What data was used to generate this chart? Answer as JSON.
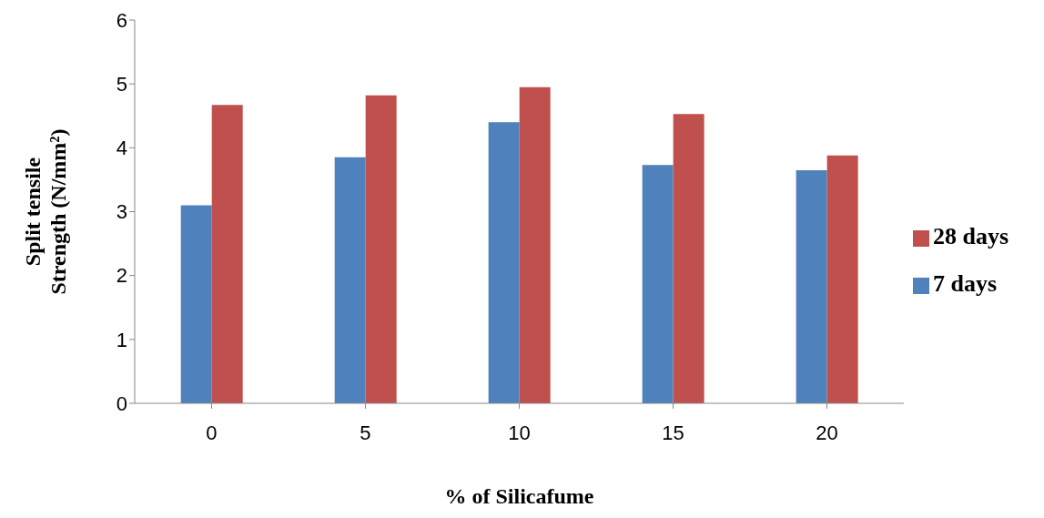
{
  "chart_data": {
    "type": "bar",
    "xlabel": "% of Silicafume",
    "ylabel": "Split tensile Strength (N/mm²)",
    "categories": [
      "0",
      "5",
      "10",
      "15",
      "20"
    ],
    "series": [
      {
        "name": "7 days",
        "color": "#4f81bd",
        "values": [
          3.1,
          3.85,
          4.4,
          3.73,
          3.65
        ]
      },
      {
        "name": "28 days",
        "color": "#c0504d",
        "values": [
          4.67,
          4.82,
          4.95,
          4.53,
          3.88
        ]
      }
    ],
    "ylim": [
      0,
      6
    ],
    "yticks": [
      0,
      1,
      2,
      3,
      4,
      5,
      6
    ],
    "grid": false,
    "legend": "right"
  }
}
